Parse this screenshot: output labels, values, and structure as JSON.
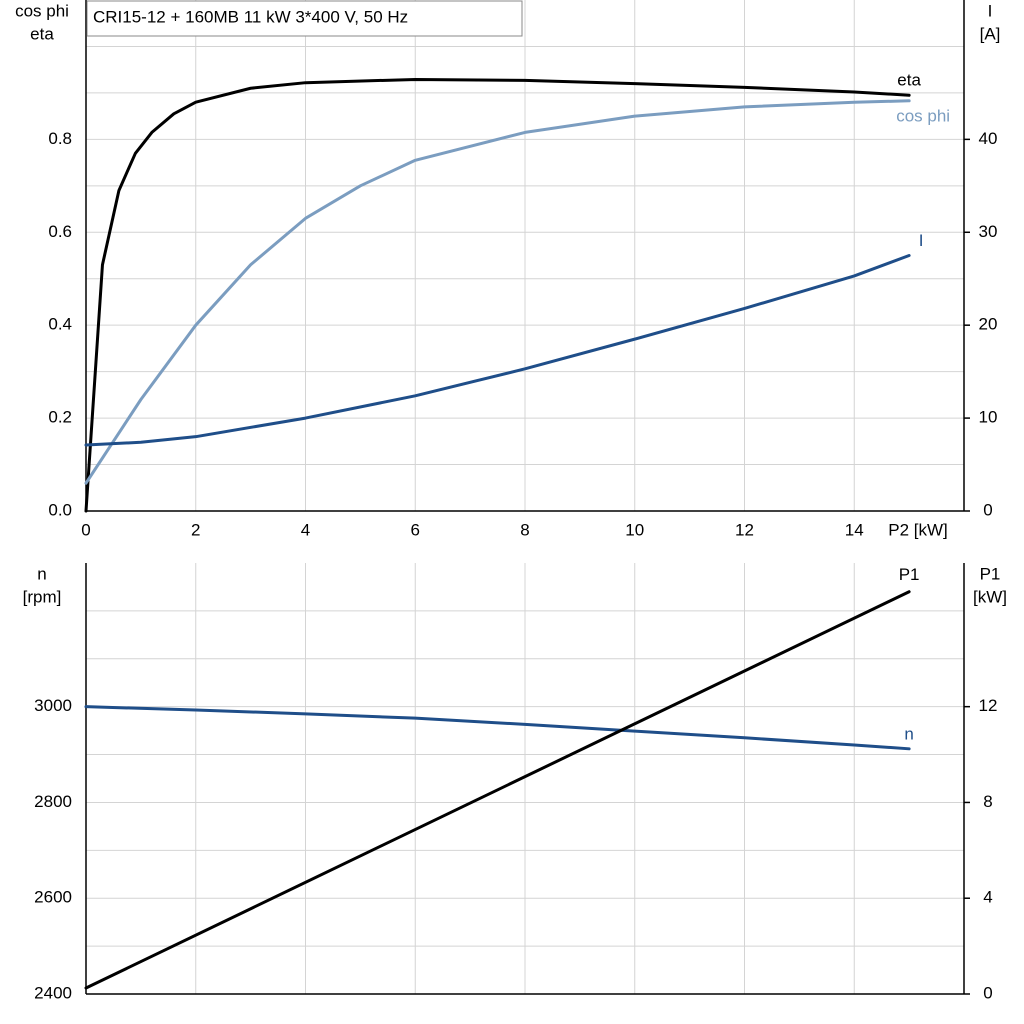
{
  "chart_data": [
    {
      "type": "line",
      "title": "CRI15-12 + 160MB   11 kW   3*400 V, 50 Hz",
      "xlabel": "P2 [kW]",
      "ylabel": [
        "cos phi",
        "eta"
      ],
      "y2label": [
        "I",
        "[A]"
      ],
      "xlim": [
        0,
        16
      ],
      "xticks": [
        0,
        2,
        4,
        6,
        8,
        10,
        12,
        14
      ],
      "ylim": [
        0,
        1.1
      ],
      "yticks": [
        {
          "value": 0,
          "label": "0.0"
        },
        0.2,
        0.4,
        0.6,
        0.8
      ],
      "ygrid": [
        0.1,
        0.3,
        0.5,
        0.7,
        0.9,
        1.0
      ],
      "y2lim": [
        0,
        55
      ],
      "y2ticks": [
        0,
        10,
        20,
        30,
        40
      ],
      "grid": true,
      "series": [
        {
          "name": "eta",
          "color": "#000000",
          "axis": "y",
          "x": [
            0,
            0.3,
            0.6,
            0.9,
            1.2,
            1.6,
            2,
            3,
            4,
            6,
            8,
            10,
            12,
            14,
            15
          ],
          "values": [
            0,
            0.53,
            0.69,
            0.77,
            0.815,
            0.855,
            0.88,
            0.91,
            0.922,
            0.929,
            0.927,
            0.92,
            0.912,
            0.902,
            0.895
          ]
        },
        {
          "name": "cos phi",
          "color": "#7b9dc0",
          "axis": "y",
          "x": [
            0,
            0.5,
            1,
            2,
            3,
            4,
            5,
            6,
            8,
            10,
            12,
            14,
            15
          ],
          "values": [
            0.06,
            0.15,
            0.24,
            0.4,
            0.53,
            0.63,
            0.7,
            0.755,
            0.815,
            0.85,
            0.87,
            0.88,
            0.883
          ]
        },
        {
          "name": "I",
          "color": "#1f4e89",
          "axis": "y2",
          "x": [
            0,
            1,
            2,
            4,
            6,
            8,
            10,
            12,
            14,
            15
          ],
          "values": [
            7.1,
            7.4,
            8,
            10,
            12.4,
            15.3,
            18.5,
            21.8,
            25.3,
            27.5
          ]
        }
      ]
    },
    {
      "type": "line",
      "ylabel": [
        "n",
        "[rpm]"
      ],
      "y2label": [
        "P1",
        "[kW]"
      ],
      "xlim": [
        0,
        16
      ],
      "xgrid": [
        2,
        4,
        6,
        8,
        10,
        12,
        14
      ],
      "ylim": [
        2400,
        3300
      ],
      "yticks": [
        2400,
        2600,
        2800,
        3000
      ],
      "ygrid": [
        2500,
        2700,
        2900,
        3100,
        3200
      ],
      "y2lim": [
        0,
        18
      ],
      "y2ticks": [
        0,
        4,
        8,
        12
      ],
      "grid": true,
      "series": [
        {
          "name": "n",
          "color": "#1f4e89",
          "axis": "y",
          "x": [
            0,
            2,
            4,
            6,
            8,
            10,
            12,
            14,
            15
          ],
          "values": [
            3000,
            2993,
            2985,
            2976,
            2963,
            2949,
            2935,
            2920,
            2912
          ]
        },
        {
          "name": "P1",
          "color": "#000000",
          "axis": "y2",
          "x": [
            0,
            15
          ],
          "values": [
            0.25,
            16.8
          ]
        }
      ]
    }
  ]
}
